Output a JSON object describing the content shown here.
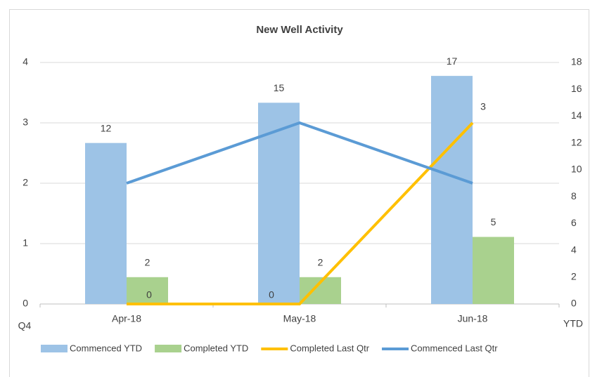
{
  "chart_data": {
    "type": "bar",
    "title": "New Well Activity",
    "ylabel": "Q4",
    "y2label": "YTD",
    "categories": [
      "Apr-18",
      "May-18",
      "Jun-18"
    ],
    "series": [
      {
        "name": "Commenced YTD",
        "type": "bar",
        "axis": "y2",
        "color": "#9dc3e6",
        "values": [
          12,
          15,
          17
        ]
      },
      {
        "name": "Completed YTD",
        "type": "bar",
        "axis": "y2",
        "color": "#a9d18e",
        "values": [
          2,
          2,
          5
        ]
      },
      {
        "name": "Completed Last Qtr",
        "type": "line",
        "color": "#ffc000",
        "values": [
          0,
          0,
          3
        ]
      },
      {
        "name": "Commenced Last Qtr",
        "type": "line",
        "color": "#5b9bd5",
        "values": [
          2,
          3,
          2
        ]
      }
    ],
    "ylim": [
      0,
      4
    ],
    "yticks": [
      0,
      1,
      2,
      3,
      4
    ],
    "y2lim": [
      0,
      18
    ],
    "y2ticks": [
      0,
      2,
      4,
      6,
      8,
      10,
      12,
      14,
      16,
      18
    ],
    "grid": true,
    "legend": "bottom"
  }
}
